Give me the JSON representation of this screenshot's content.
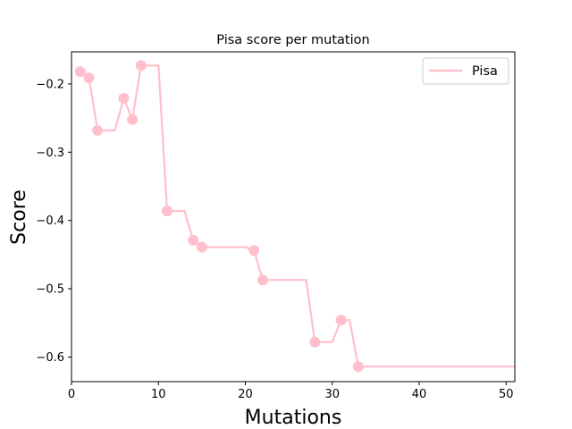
{
  "chart_data": {
    "type": "line",
    "title": "Pisa score per mutation",
    "xlabel": "Mutations",
    "ylabel": "Score",
    "xlim": [
      0,
      51
    ],
    "ylim": [
      -0.636,
      -0.153
    ],
    "xticks": [
      0,
      10,
      20,
      30,
      40,
      50
    ],
    "yticks": [
      -0.2,
      -0.3,
      -0.4,
      -0.5,
      -0.6
    ],
    "ytick_labels": [
      "−0.2",
      "−0.3",
      "−0.4",
      "−0.5",
      "−0.6"
    ],
    "grid": false,
    "legend_position": "top-right",
    "series": [
      {
        "name": "Pisa",
        "color": "#ffc0cb",
        "line_style": "steps-post",
        "line": [
          [
            1,
            -0.182
          ],
          [
            2,
            -0.191
          ],
          [
            3,
            -0.268
          ],
          [
            5,
            -0.268
          ],
          [
            6,
            -0.221
          ],
          [
            7,
            -0.252
          ],
          [
            8,
            -0.173
          ],
          [
            10,
            -0.173
          ],
          [
            11,
            -0.386
          ],
          [
            13,
            -0.386
          ],
          [
            14,
            -0.429
          ],
          [
            15,
            -0.439
          ],
          [
            20,
            -0.439
          ],
          [
            21,
            -0.444
          ],
          [
            22,
            -0.487
          ],
          [
            27,
            -0.487
          ],
          [
            28,
            -0.578
          ],
          [
            30,
            -0.578
          ],
          [
            31,
            -0.546
          ],
          [
            32,
            -0.546
          ],
          [
            33,
            -0.614
          ],
          [
            51,
            -0.614
          ]
        ],
        "markers": [
          [
            1,
            -0.182
          ],
          [
            2,
            -0.191
          ],
          [
            3,
            -0.268
          ],
          [
            6,
            -0.221
          ],
          [
            7,
            -0.252
          ],
          [
            8,
            -0.173
          ],
          [
            11,
            -0.386
          ],
          [
            14,
            -0.429
          ],
          [
            15,
            -0.439
          ],
          [
            21,
            -0.444
          ],
          [
            22,
            -0.487
          ],
          [
            28,
            -0.578
          ],
          [
            31,
            -0.546
          ],
          [
            33,
            -0.614
          ]
        ]
      }
    ]
  }
}
